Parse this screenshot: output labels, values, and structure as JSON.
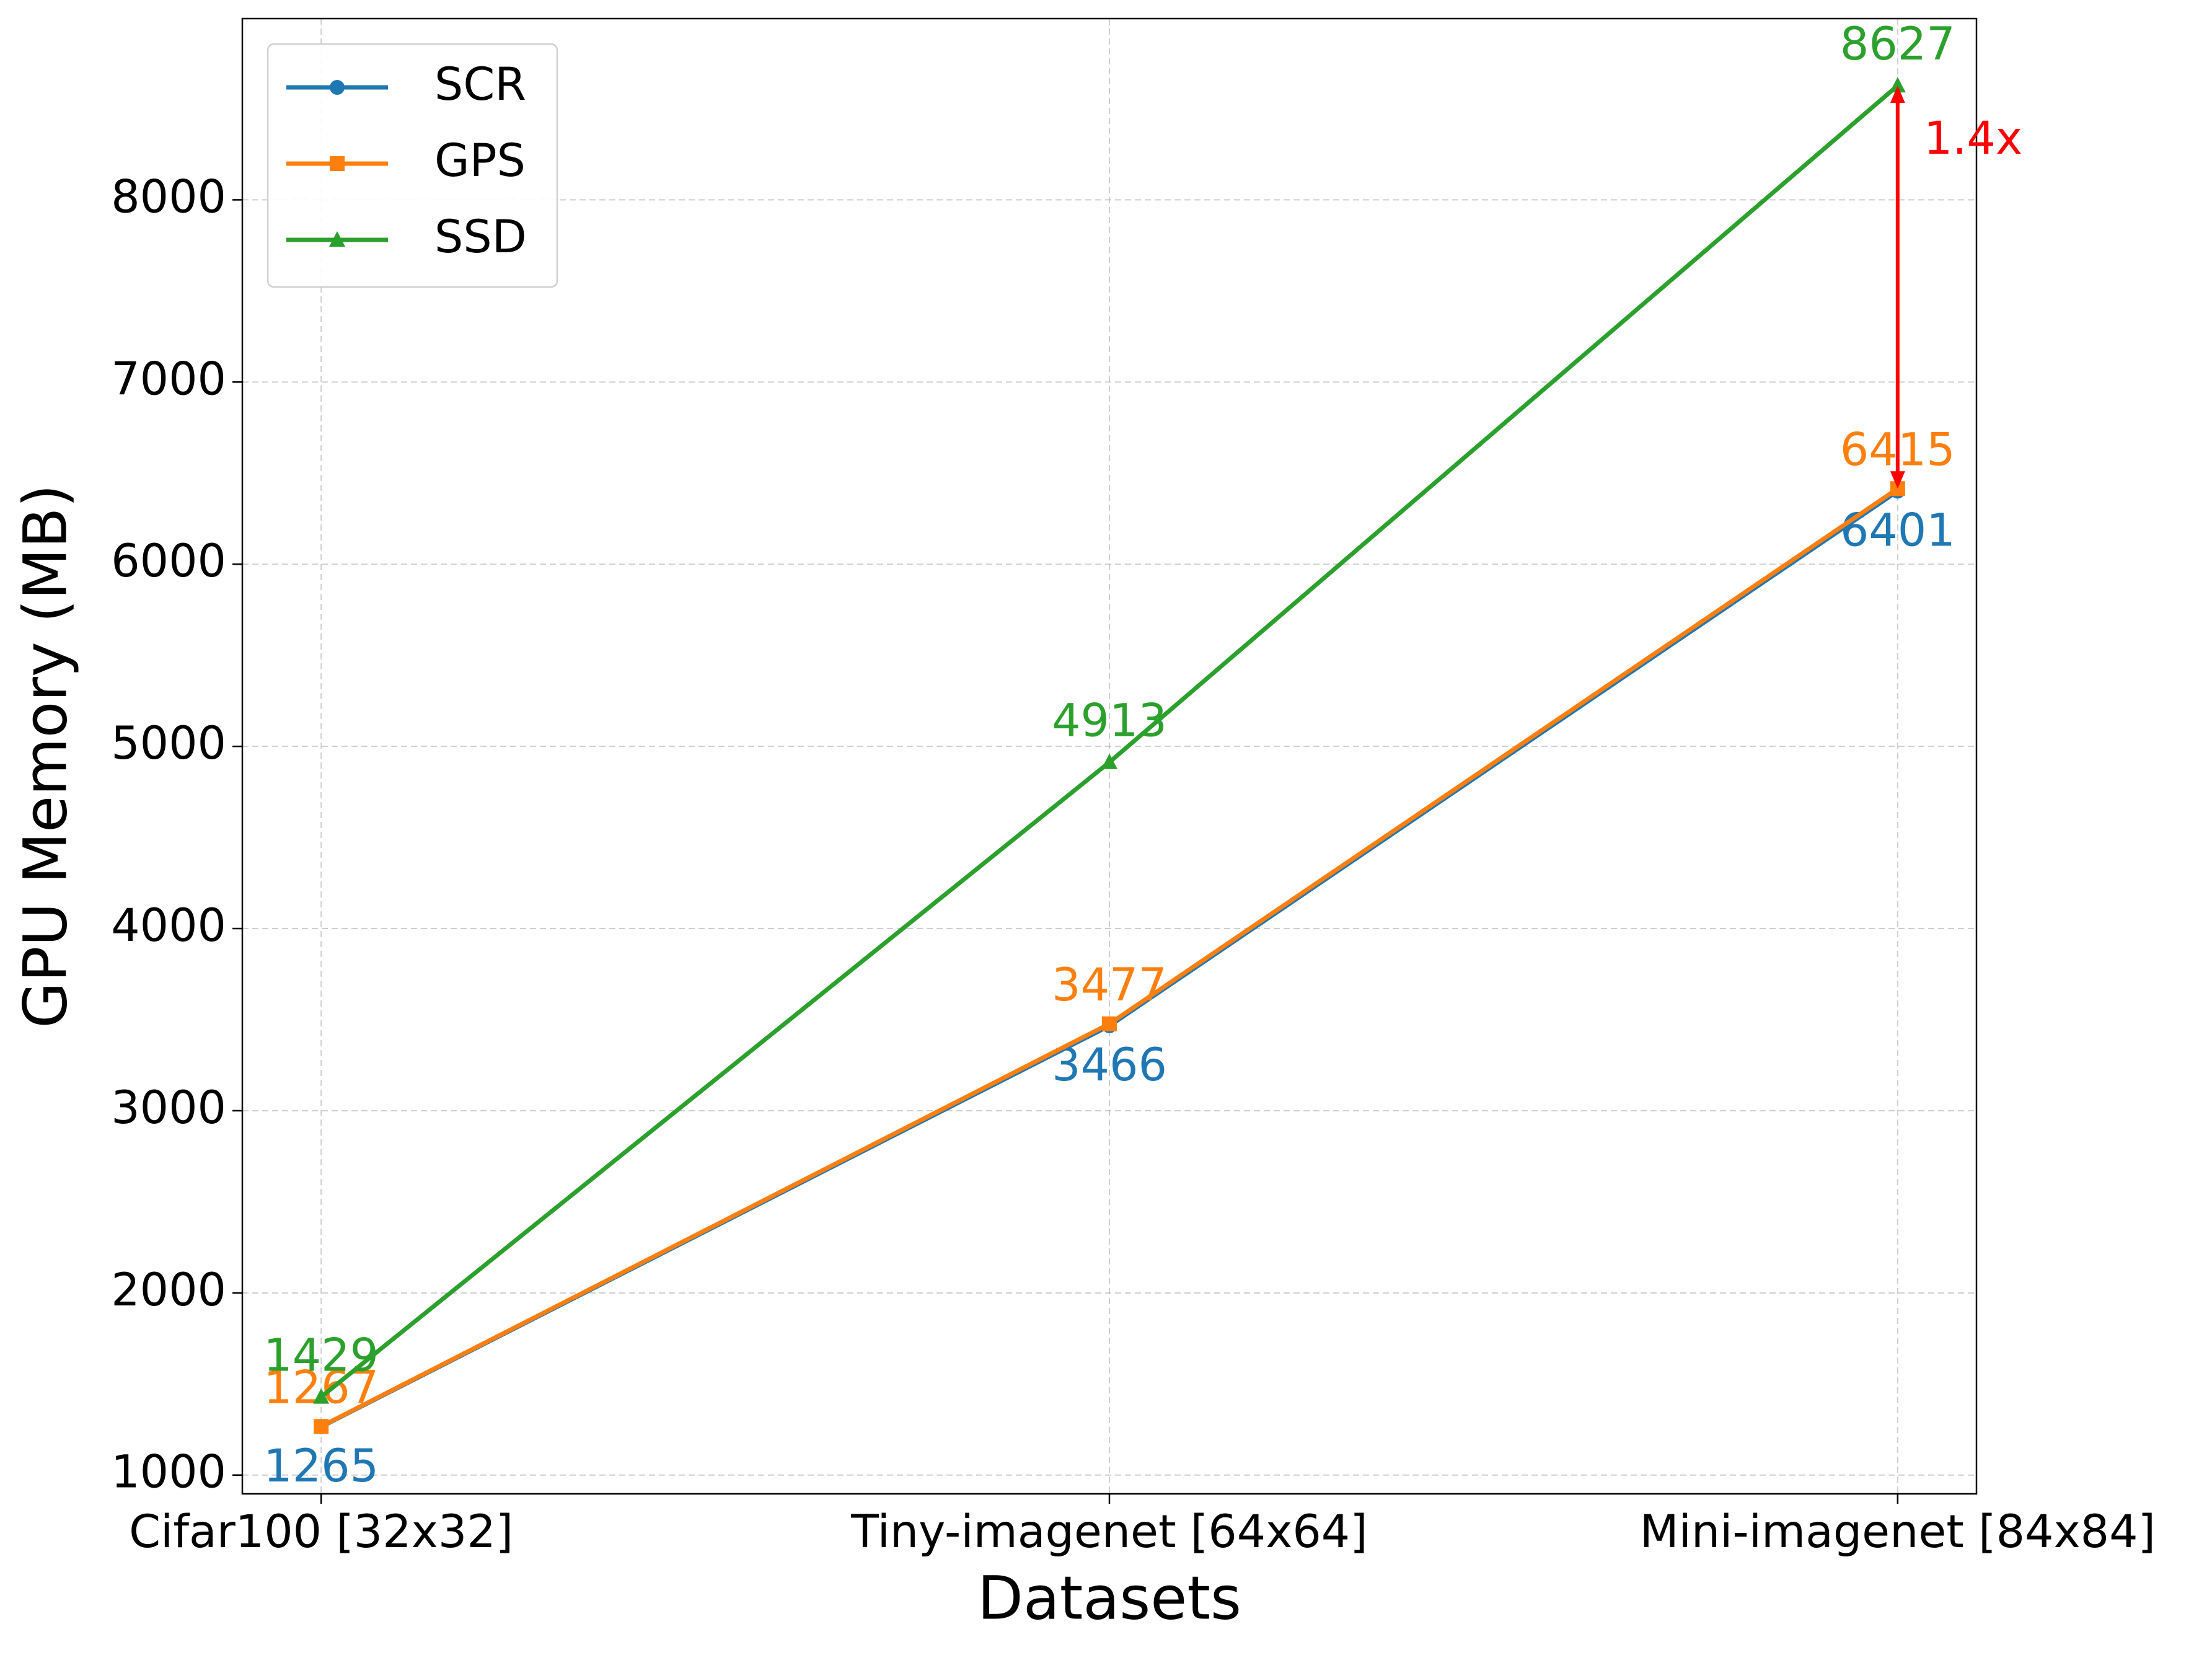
{
  "chart_data": {
    "type": "line",
    "x_label": "Datasets",
    "y_label": "GPU Memory (MB)",
    "categories": [
      "Cifar100 [32x32]",
      "Tiny-imagenet [64x64]",
      "Mini-imagenet [84x84]"
    ],
    "series": [
      {
        "name": "SCR",
        "color": "#1f77b4",
        "marker": "circle",
        "values": [
          1265,
          3466,
          6401
        ]
      },
      {
        "name": "GPS",
        "color": "#ff7f0e",
        "marker": "square",
        "values": [
          1267,
          3477,
          6415
        ]
      },
      {
        "name": "SSD",
        "color": "#2ca02c",
        "marker": "triangle",
        "values": [
          1429,
          4913,
          8627
        ]
      }
    ],
    "ylim": [
      897,
      8995
    ],
    "yticks": [
      1000,
      2000,
      3000,
      4000,
      5000,
      6000,
      7000,
      8000
    ],
    "grid": true,
    "legend": "upper left",
    "annotation": {
      "text": "1.4x",
      "color": "#ff0000"
    }
  }
}
